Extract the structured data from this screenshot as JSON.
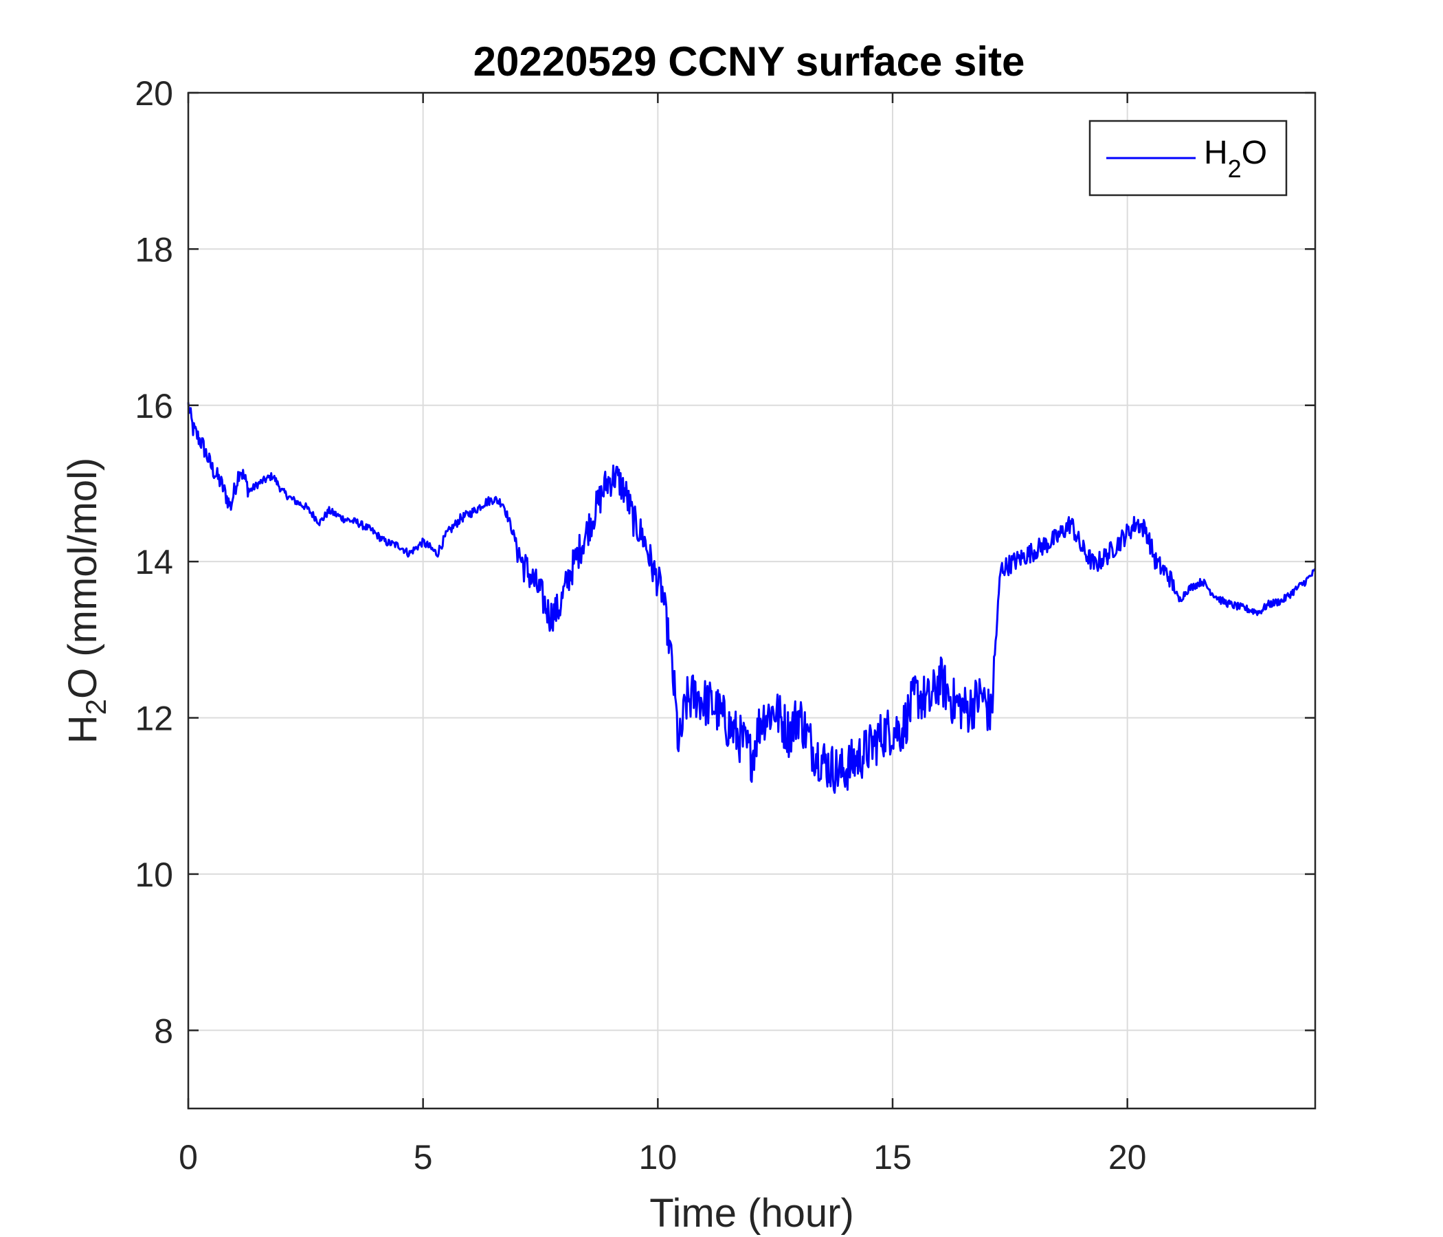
{
  "chart_data": {
    "type": "line",
    "title": "20220529 CCNY surface site",
    "xlabel": "Time (hour)",
    "ylabel": {
      "main": "H",
      "sub": "2",
      "rest": "O (mmol/mol)"
    },
    "xlim": [
      0,
      24
    ],
    "ylim": [
      7,
      20
    ],
    "xticks": [
      0,
      5,
      10,
      15,
      20
    ],
    "yticks": [
      8,
      10,
      12,
      14,
      16,
      18,
      20
    ],
    "grid": true,
    "legend": {
      "position": "top-right",
      "entries": [
        {
          "main": "H",
          "sub": "2",
          "rest": "O"
        }
      ]
    },
    "colors": {
      "series": "#0000ff",
      "grid": "#dcdcdc",
      "axis": "#262626"
    },
    "series": [
      {
        "name": "H2O",
        "noisy_after_hour": 10.3,
        "x": [
          0,
          0.1,
          0.3,
          0.5,
          0.7,
          0.9,
          1.1,
          1.3,
          1.5,
          1.8,
          2.0,
          2.2,
          2.5,
          2.8,
          3.0,
          3.3,
          3.6,
          3.9,
          4.2,
          4.5,
          4.7,
          4.9,
          5.0,
          5.2,
          5.3,
          5.5,
          5.8,
          6.1,
          6.3,
          6.5,
          6.7,
          6.9,
          7.1,
          7.3,
          7.5,
          7.7,
          7.9,
          8.1,
          8.3,
          8.5,
          8.7,
          8.9,
          9.1,
          9.3,
          9.5,
          9.7,
          9.9,
          10.1,
          10.3,
          10.45,
          10.6,
          10.8,
          11.0,
          11.2,
          11.5,
          11.8,
          12.0,
          12.2,
          12.5,
          12.8,
          13.0,
          13.3,
          13.6,
          13.9,
          14.2,
          14.5,
          14.8,
          15.0,
          15.2,
          15.5,
          15.8,
          16.0,
          16.3,
          16.6,
          16.9,
          17.1,
          17.2,
          17.3,
          17.6,
          17.9,
          18.2,
          18.5,
          18.8,
          19.0,
          19.3,
          19.6,
          19.9,
          20.2,
          20.4,
          20.6,
          20.9,
          21.1,
          21.3,
          21.6,
          21.8,
          22.0,
          22.2,
          22.5,
          22.8,
          23.0,
          23.3,
          23.6,
          23.8,
          24.0
        ],
        "values": [
          16.0,
          15.7,
          15.5,
          15.2,
          15.0,
          14.7,
          15.2,
          14.9,
          15.0,
          15.1,
          14.9,
          14.8,
          14.7,
          14.5,
          14.65,
          14.55,
          14.5,
          14.4,
          14.25,
          14.2,
          14.1,
          14.2,
          14.25,
          14.15,
          14.1,
          14.35,
          14.55,
          14.65,
          14.75,
          14.8,
          14.75,
          14.4,
          14.0,
          13.8,
          13.6,
          13.3,
          13.4,
          13.8,
          14.1,
          14.4,
          14.7,
          15.0,
          15.1,
          14.9,
          14.5,
          14.3,
          13.9,
          13.6,
          12.7,
          11.6,
          12.2,
          12.3,
          12.2,
          12.15,
          11.9,
          11.7,
          11.5,
          12.0,
          12.1,
          11.8,
          12.05,
          11.6,
          11.4,
          11.3,
          11.45,
          11.6,
          11.8,
          11.85,
          11.85,
          12.3,
          12.2,
          12.5,
          12.2,
          12.1,
          12.3,
          12.0,
          13.0,
          13.9,
          14.0,
          14.1,
          14.2,
          14.3,
          14.5,
          14.2,
          13.95,
          14.1,
          14.3,
          14.5,
          14.4,
          14.0,
          13.8,
          13.5,
          13.65,
          13.75,
          13.6,
          13.5,
          13.45,
          13.4,
          13.35,
          13.45,
          13.5,
          13.65,
          13.75,
          13.88
        ]
      }
    ]
  }
}
